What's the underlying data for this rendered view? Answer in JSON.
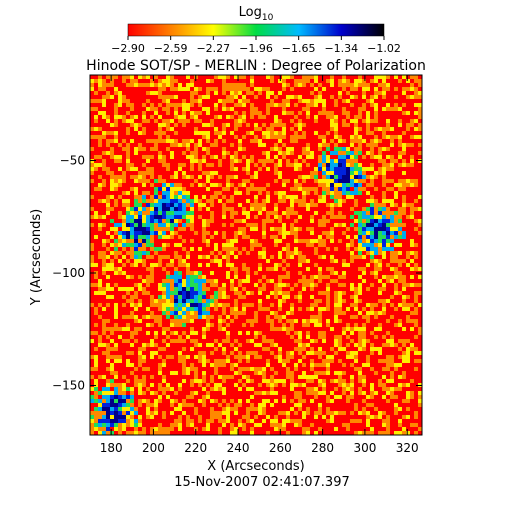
{
  "chart_data": {
    "type": "heatmap",
    "title": "Hinode SOT/SP - MERLIN : Degree of Polarization",
    "colorbar": {
      "label_base": "Log",
      "label_sub": "10",
      "ticks": [
        "−2.90",
        "−2.59",
        "−2.27",
        "−1.96",
        "−1.65",
        "−1.34",
        "−1.02"
      ],
      "range": [
        -2.9,
        -1.02
      ],
      "colors": [
        "#ff0000",
        "#ff8000",
        "#ffff00",
        "#00dd44",
        "#00bbff",
        "#0000cc",
        "#000000"
      ]
    },
    "xlabel": "X (Arcseconds)",
    "ylabel": "Y (Arcseconds)",
    "xlim": [
      170,
      327
    ],
    "ylim": [
      -172,
      -12
    ],
    "x_ticks": [
      180,
      200,
      220,
      240,
      260,
      280,
      300,
      320
    ],
    "y_ticks": [
      -50,
      -100,
      -150
    ],
    "x_tick_labels": [
      "180",
      "200",
      "220",
      "240",
      "260",
      "280",
      "300",
      "320"
    ],
    "y_tick_labels": [
      "−50",
      "−100",
      "−150"
    ],
    "timestamp": "15-Nov-2007 02:41:07.397",
    "high_polarization_regions": [
      {
        "x": 288,
        "y": -55
      },
      {
        "x": 215,
        "y": -110
      },
      {
        "x": 205,
        "y": -70
      },
      {
        "x": 192,
        "y": -80
      },
      {
        "x": 305,
        "y": -80
      },
      {
        "x": 180,
        "y": -160
      }
    ]
  }
}
